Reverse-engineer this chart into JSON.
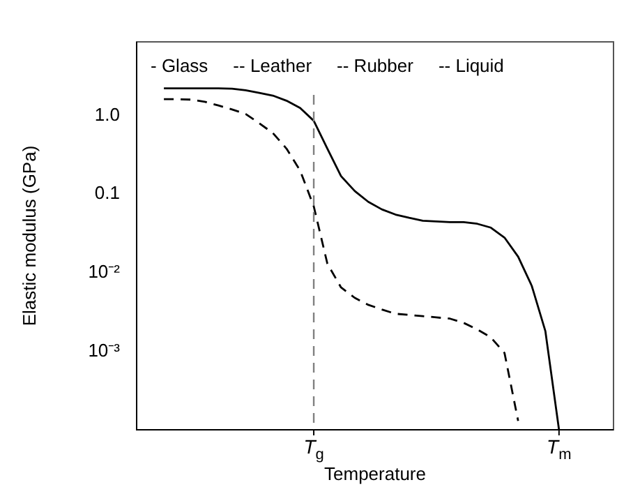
{
  "chart_data": {
    "type": "line",
    "xlabel": "Temperature",
    "ylabel": "Elastic modulus (GPa)",
    "log": "y",
    "grid": false,
    "legend": false,
    "marker": "none",
    "categories": [
      null,
      null,
      null,
      null,
      null,
      null,
      null,
      null,
      null,
      null,
      null,
      null,
      null,
      "T$_{g}$",
      null,
      null,
      null,
      null,
      null,
      null,
      null,
      null,
      null,
      null,
      null,
      null,
      null,
      null,
      null,
      null,
      null,
      "T$_{m}$",
      null,
      null,
      null,
      null
    ],
    "ylim": [
      0.0001,
      8.7
    ],
    "yticks": [
      {
        "value": 0.001,
        "label": "10⁻³"
      },
      {
        "value": 0.01,
        "label": "10⁻²"
      },
      {
        "value": 0.1,
        "label": "0.1"
      },
      {
        "value": 1,
        "label": "1.0"
      }
    ],
    "series": [
      {
        "color": "#000000",
        "line_style": "solid",
        "values": [
          null,
          null,
          2.23,
          2.23,
          2.23,
          2.23,
          2.23,
          2.2,
          2.1,
          1.95,
          1.8,
          1.55,
          1.25,
          0.86,
          0.38,
          0.17,
          0.11,
          0.08,
          0.064,
          0.055,
          0.05,
          0.046,
          0.045,
          0.044,
          0.044,
          0.042,
          0.0375,
          0.028,
          0.016,
          0.0068,
          0.0018,
          0.0001,
          null,
          null,
          null,
          null
        ]
      },
      {
        "color": "#000000",
        "line_style": "dashed",
        "values": [
          null,
          null,
          1.62,
          1.62,
          1.6,
          1.5,
          1.35,
          1.2,
          1.05,
          0.8,
          0.6,
          0.38,
          0.2,
          0.07,
          0.013,
          0.0065,
          0.0048,
          0.0039,
          0.0034,
          0.003,
          0.0029,
          0.0028,
          0.0027,
          0.0026,
          0.0023,
          0.0019,
          0.0015,
          0.00095,
          0.00013,
          null,
          null,
          null,
          null,
          null,
          null,
          null
        ]
      }
    ],
    "ref_lines": [
      {
        "axis": "x",
        "value": "T$_{g}$",
        "color": "#808080",
        "line_style": "dashed"
      }
    ],
    "annotations": [
      "- Glass",
      "-- Leather",
      "-- Rubber",
      "-- Liquid"
    ]
  }
}
